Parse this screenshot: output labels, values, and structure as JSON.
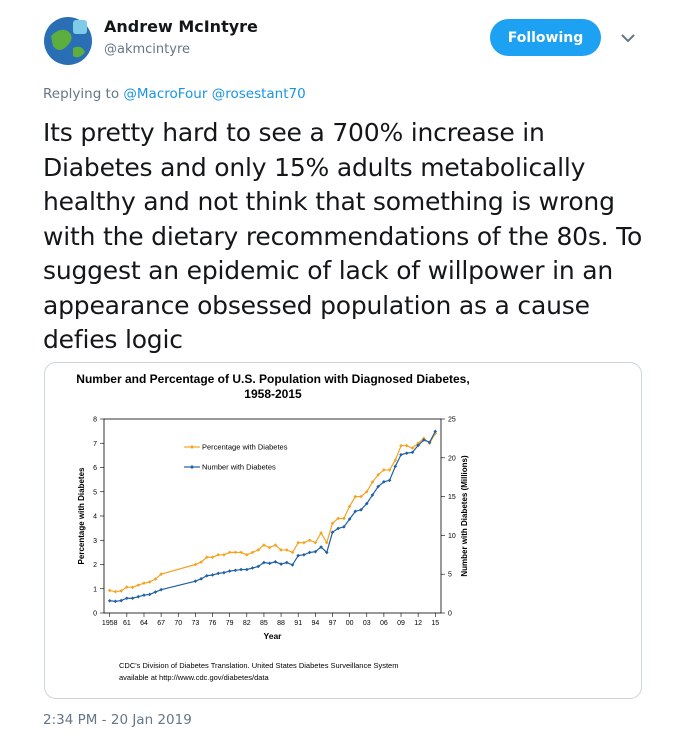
{
  "user": {
    "name": "Andrew McIntyre",
    "handle": "@akmcintyre"
  },
  "follow_button": "Following",
  "reply": {
    "label": "Replying to",
    "mentions": [
      "@MacroFour",
      "@rosestant70"
    ]
  },
  "text": "Its pretty hard to see a 700% increase in Diabetes and only 15% adults metabolically healthy and not think that something is wrong with the dietary recommendations of the 80s. To suggest an epidemic of lack of willpower in an appearance obsessed population as a cause defies logic",
  "timestamp": "2:34 PM - 20 Jan 2019",
  "chart_data": {
    "type": "line",
    "title": "Number and Percentage of U.S. Population with Diagnosed Diabetes,",
    "subtitle": "1958-2015",
    "x_label": "Year",
    "y_label": "Percentage with Diabetes",
    "y2_label": "Number with Diabetes (Millions)",
    "source": [
      "CDC's Division of Diabetes Translation. United States Diabetes Surveillance System",
      "available at http://www.cdc.gov/diabetes/data"
    ],
    "x": [
      1958,
      1959,
      1960,
      1961,
      1962,
      1963,
      1964,
      1965,
      1966,
      1967,
      1973,
      1974,
      1975,
      1976,
      1977,
      1978,
      1979,
      1980,
      1981,
      1982,
      1983,
      1984,
      1985,
      1986,
      1987,
      1988,
      1989,
      1990,
      1991,
      1992,
      1993,
      1994,
      1995,
      1996,
      1997,
      1998,
      1999,
      2000,
      2001,
      2002,
      2003,
      2004,
      2005,
      2006,
      2007,
      2008,
      2009,
      2010,
      2011,
      2012,
      2013,
      2014,
      2015
    ],
    "series": [
      {
        "name": "Percentage with Diabetes",
        "color": "#f5a31f",
        "axis": "y",
        "values": [
          0.93,
          0.88,
          0.91,
          1.07,
          1.06,
          1.15,
          1.23,
          1.28,
          1.4,
          1.6,
          2.0,
          2.1,
          2.3,
          2.3,
          2.4,
          2.4,
          2.5,
          2.5,
          2.5,
          2.4,
          2.5,
          2.6,
          2.8,
          2.7,
          2.8,
          2.6,
          2.6,
          2.5,
          2.9,
          2.9,
          3.0,
          2.9,
          3.3,
          2.9,
          3.7,
          3.9,
          3.9,
          4.4,
          4.8,
          4.8,
          5.0,
          5.4,
          5.7,
          5.9,
          5.9,
          6.3,
          6.9,
          6.9,
          6.8,
          7.0,
          7.2,
          7.0,
          7.4
        ]
      },
      {
        "name": "Number with Diabetes",
        "color": "#1f5fa8",
        "axis": "y2",
        "values": [
          1.58,
          1.5,
          1.6,
          1.9,
          1.9,
          2.1,
          2.3,
          2.4,
          2.7,
          3.0,
          4.1,
          4.4,
          4.8,
          4.9,
          5.1,
          5.2,
          5.4,
          5.5,
          5.6,
          5.6,
          5.8,
          6.0,
          6.5,
          6.4,
          6.6,
          6.3,
          6.5,
          6.2,
          7.4,
          7.5,
          7.8,
          7.9,
          8.5,
          7.8,
          10.4,
          10.9,
          11.1,
          12.1,
          13.1,
          13.3,
          14.1,
          15.2,
          16.3,
          16.9,
          17.1,
          18.9,
          20.4,
          20.6,
          20.7,
          21.6,
          22.3,
          22.0,
          23.4
        ]
      }
    ],
    "xlim": [
      1957,
      2016
    ],
    "xticks": [
      1958,
      {
        "value": 1961,
        "label": "61"
      },
      {
        "value": 1964,
        "label": "64"
      },
      {
        "value": 1967,
        "label": "67"
      },
      {
        "value": 1970,
        "label": "70"
      },
      {
        "value": 1973,
        "label": "73"
      },
      {
        "value": 1976,
        "label": "76"
      },
      {
        "value": 1979,
        "label": "79"
      },
      {
        "value": 1982,
        "label": "82"
      },
      {
        "value": 1985,
        "label": "85"
      },
      {
        "value": 1988,
        "label": "88"
      },
      {
        "value": 1991,
        "label": "91"
      },
      {
        "value": 1994,
        "label": "94"
      },
      {
        "value": 1997,
        "label": "97"
      },
      {
        "value": 2000,
        "label": "00"
      },
      {
        "value": 2003,
        "label": "03"
      },
      {
        "value": 2006,
        "label": "06"
      },
      {
        "value": 2009,
        "label": "09"
      },
      {
        "value": 2012,
        "label": "12"
      },
      {
        "value": 2015,
        "label": "15"
      }
    ],
    "ylim": [
      0,
      8
    ],
    "yticks": [
      0,
      1,
      2,
      3,
      4,
      5,
      6,
      7,
      8
    ],
    "y2lim": [
      0,
      25
    ],
    "y2ticks": [
      0,
      5,
      10,
      15,
      20,
      25
    ],
    "legend": "upper-left",
    "grid": false
  }
}
